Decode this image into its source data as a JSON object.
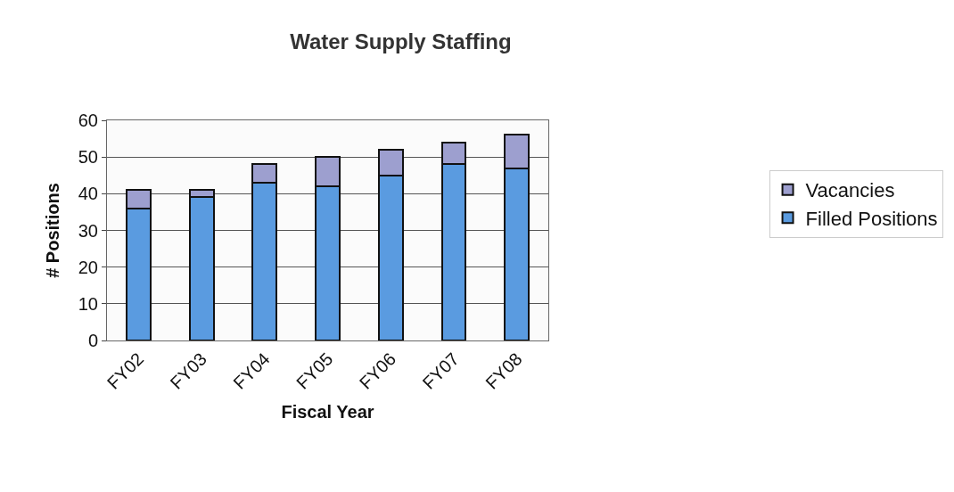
{
  "chart_data": {
    "type": "bar",
    "title": "Water Supply Staffing",
    "xlabel": "Fiscal Year",
    "ylabel": "# Positions",
    "categories": [
      "FY02",
      "FY03",
      "FY04",
      "FY05",
      "FY06",
      "FY07",
      "FY08"
    ],
    "stacked": true,
    "series": [
      {
        "name": "Filled Positions",
        "color": "#5a9be0",
        "values": [
          36,
          39,
          43,
          42,
          45,
          48,
          47
        ]
      },
      {
        "name": "Vacancies",
        "color": "#9d9fcf",
        "values": [
          5,
          2,
          5,
          8,
          7,
          6,
          9
        ]
      }
    ],
    "ylim": [
      0,
      60
    ],
    "yticks": [
      0,
      10,
      20,
      30,
      40,
      50,
      60
    ],
    "grid": "y",
    "legend": "right"
  }
}
